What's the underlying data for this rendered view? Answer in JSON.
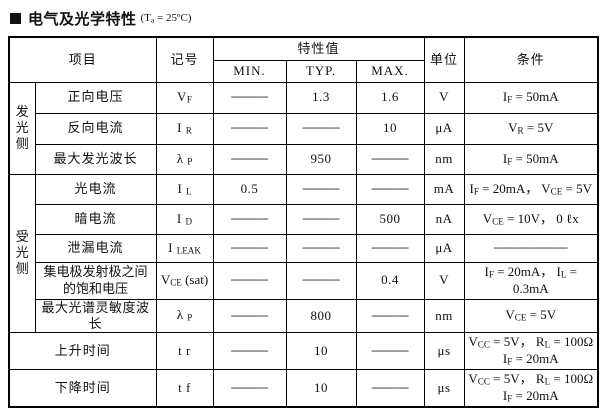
{
  "title": {
    "text": "电气及光学特性",
    "note": [
      {
        "t": "(T"
      },
      {
        "s": "a"
      },
      {
        "t": " = 25ºC)"
      }
    ]
  },
  "table": {
    "headers": {
      "item": "项目",
      "symbol": "记号",
      "value": "特性值",
      "min": "MIN.",
      "typ": "TYP.",
      "max": "MAX.",
      "unit": "单位",
      "condition": "条件"
    },
    "groups": [
      {
        "label": "发光侧"
      },
      {
        "label": "受光侧"
      }
    ],
    "rows": [
      {
        "item": "正向电压",
        "symbol": [
          {
            "t": "V"
          },
          {
            "s": "F"
          }
        ],
        "min": "────",
        "typ": "1.3",
        "max": "1.6",
        "unit": "V",
        "condition": [
          {
            "t": "I"
          },
          {
            "s": "F"
          },
          {
            "t": " = 50mA"
          }
        ]
      },
      {
        "item": "反向电流",
        "symbol": [
          {
            "t": "I "
          },
          {
            "s": "R"
          }
        ],
        "min": "────",
        "typ": "────",
        "max": "10",
        "unit": "μA",
        "condition": [
          {
            "t": "V"
          },
          {
            "s": "R"
          },
          {
            "t": " = 5V"
          }
        ]
      },
      {
        "item": "最大发光波长",
        "symbol": [
          {
            "t": "λ "
          },
          {
            "s": "P"
          }
        ],
        "min": "────",
        "typ": "950",
        "max": "────",
        "unit": "nm",
        "condition": [
          {
            "t": "I"
          },
          {
            "s": "F"
          },
          {
            "t": " = 50mA"
          }
        ]
      },
      {
        "item": "光电流",
        "symbol": [
          {
            "t": "I "
          },
          {
            "s": "L"
          }
        ],
        "min": "0.5",
        "typ": "────",
        "max": "────",
        "unit": "mA",
        "condition": [
          {
            "t": "I"
          },
          {
            "s": "F"
          },
          {
            "t": " = 20mA，"
          },
          {
            "t": " V"
          },
          {
            "s": "CE"
          },
          {
            "t": " = 5V"
          }
        ]
      },
      {
        "item": "暗电流",
        "symbol": [
          {
            "t": "I "
          },
          {
            "s": "D"
          }
        ],
        "min": "────",
        "typ": "────",
        "max": "500",
        "unit": "nA",
        "condition": [
          {
            "t": "V"
          },
          {
            "s": "CE"
          },
          {
            "t": " = 10V，"
          },
          {
            "t": " 0 ℓx"
          }
        ]
      },
      {
        "item": "泄漏电流",
        "symbol": [
          {
            "t": "I "
          },
          {
            "s": "LEAK"
          }
        ],
        "min": "────",
        "typ": "────",
        "max": "────",
        "unit": "μA",
        "condition": [
          {
            "t": "────────"
          }
        ]
      },
      {
        "item": "集电极发射极之间的饱和电压",
        "symbol": [
          {
            "t": "V"
          },
          {
            "s": "CE"
          },
          {
            "t": " (sat)"
          }
        ],
        "min": "────",
        "typ": "────",
        "max": "0.4",
        "unit": "V",
        "condition": [
          {
            "t": "I"
          },
          {
            "s": "F"
          },
          {
            "t": " = 20mA，"
          },
          {
            "t": " I"
          },
          {
            "s": "L"
          },
          {
            "t": " = 0.3mA"
          }
        ]
      },
      {
        "item": "最大光谱灵敏度波长",
        "symbol": [
          {
            "t": "λ "
          },
          {
            "s": "P"
          }
        ],
        "min": "────",
        "typ": "800",
        "max": "────",
        "unit": "nm",
        "condition": [
          {
            "t": "V"
          },
          {
            "s": "CE"
          },
          {
            "t": " = 5V"
          }
        ]
      },
      {
        "item": "上升时间",
        "symbol": [
          {
            "t": "t r"
          }
        ],
        "min": "────",
        "typ": "10",
        "max": "────",
        "unit": "μs",
        "condition": [
          {
            "t": "V"
          },
          {
            "s": "CC"
          },
          {
            "t": " = 5V，"
          },
          {
            "t": " R"
          },
          {
            "s": "L"
          },
          {
            "t": " = 100Ω"
          },
          {
            "br": true
          },
          {
            "t": "I"
          },
          {
            "s": "F"
          },
          {
            "t": " = 20mA"
          }
        ]
      },
      {
        "item": "下降时间",
        "symbol": [
          {
            "t": "t f"
          }
        ],
        "min": "────",
        "typ": "10",
        "max": "────",
        "unit": "μs",
        "condition": [
          {
            "t": "V"
          },
          {
            "s": "CC"
          },
          {
            "t": " = 5V，"
          },
          {
            "t": " R"
          },
          {
            "s": "L"
          },
          {
            "t": " = 100Ω"
          },
          {
            "br": true
          },
          {
            "t": "I"
          },
          {
            "s": "F"
          },
          {
            "t": " = 20mA"
          }
        ]
      }
    ]
  }
}
